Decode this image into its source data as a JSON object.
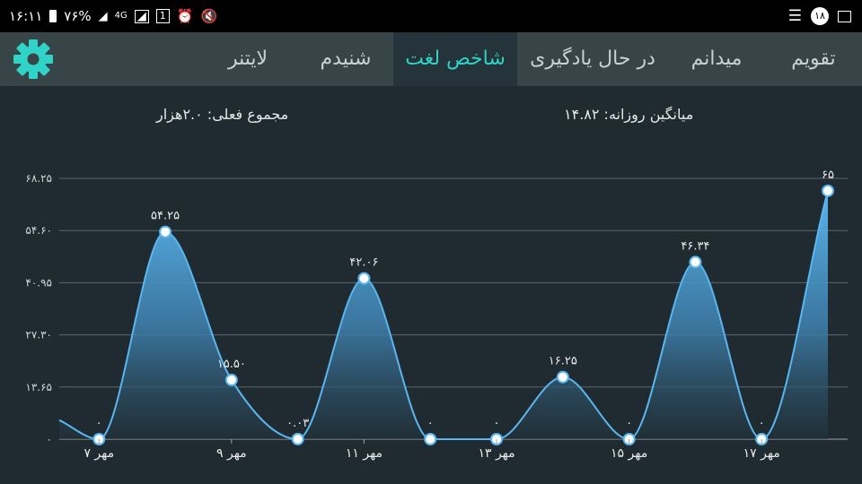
{
  "statusbar": {
    "time": "۱۶:۱۱",
    "battery": "۷۶%",
    "network": "4G",
    "sim": "1",
    "notification_count": "۱۸"
  },
  "tabs": [
    {
      "label": "تقویم"
    },
    {
      "label": "میدانم"
    },
    {
      "label": "در حال یادگیری"
    },
    {
      "label": "شاخص لغت"
    },
    {
      "label": "شنیدم"
    },
    {
      "label": "لایتنر"
    }
  ],
  "summary": {
    "daily_average": "میانگین روزانه: ۱۴.۸۲",
    "current_total": "مجموع فعلی: ۲.۰هزار"
  },
  "colors": {
    "background": "#1f2b30",
    "toolbar": "#374448",
    "active_tab_text": "#2fd3c7",
    "line": "#5ab6ef",
    "gear": "#2fd3c7"
  },
  "chart_data": {
    "type": "area",
    "y_tick_labels": [
      "۶۸.۲۵",
      "۵۴.۶۰",
      "۴۰.۹۵",
      "۲۷.۳۰",
      "۱۳.۶۵",
      "۰"
    ],
    "ylim": [
      0,
      68.25
    ],
    "x_tick_labels": [
      "۷ مهر",
      "۹ مهر",
      "۱۱ مهر",
      "۱۳ مهر",
      "۱۵ مهر",
      "۱۷ مهر"
    ],
    "x_tick_positions": [
      1,
      3,
      5,
      7,
      9,
      11
    ],
    "xlim": [
      0.4,
      12
    ],
    "series": [
      {
        "x": [
          0.4,
          1,
          2,
          3,
          4,
          5,
          6,
          7,
          8,
          9,
          10,
          11,
          12
        ],
        "values": [
          5,
          0,
          54.25,
          15.5,
          0.03,
          42.06,
          0,
          0,
          16.25,
          0,
          46.34,
          0,
          65
        ],
        "point_labels": [
          "",
          "۰",
          "۵۴.۲۵",
          "۱۵.۵۰",
          "۰.۰۳",
          "۴۲.۰۶",
          "۰",
          "۰",
          "۱۶.۲۵",
          "۰",
          "۴۶.۳۴",
          "۰",
          "۶۵"
        ]
      }
    ]
  }
}
